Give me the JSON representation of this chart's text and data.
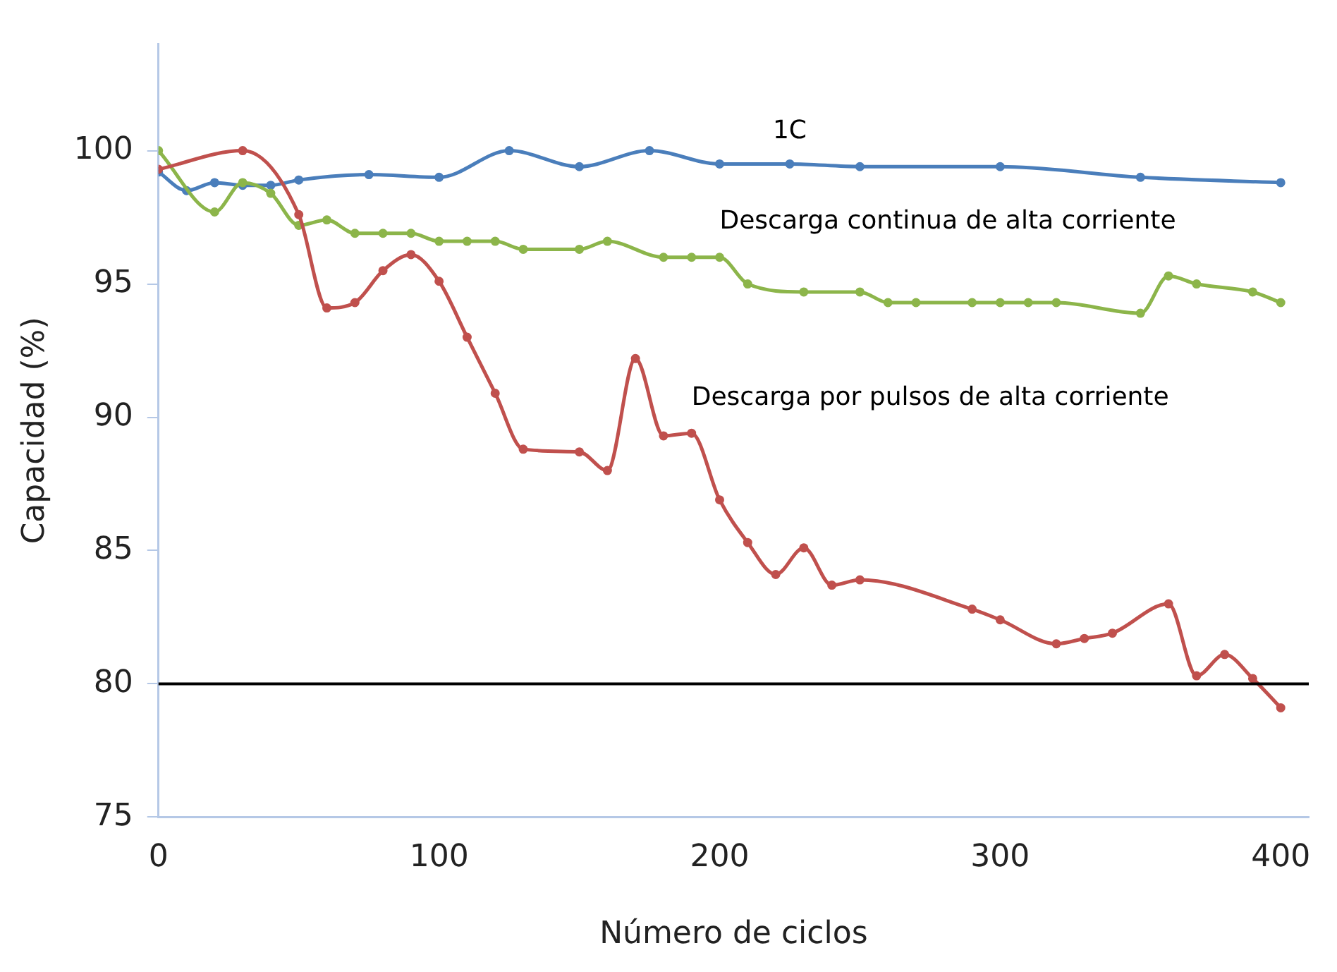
{
  "chart_data": {
    "type": "line",
    "xlabel": "Número de ciclos",
    "ylabel": "Capacidad (%)",
    "xlim": [
      0,
      410
    ],
    "xticks": [
      0,
      100,
      200,
      300,
      400
    ],
    "ylim": [
      75,
      104
    ],
    "yticks": [
      75,
      80,
      85,
      90,
      95,
      100
    ],
    "grid": false,
    "legend": false,
    "marker": "circle",
    "line_style": "solid",
    "ref_lines": [
      {
        "axis": "y",
        "value": 80,
        "color": "#000000"
      }
    ],
    "series": [
      {
        "name": "1C",
        "color": "#4a7ebb",
        "x": [
          0,
          10,
          20,
          30,
          40,
          50,
          75,
          100,
          125,
          150,
          175,
          200,
          225,
          250,
          300,
          350,
          400
        ],
        "values": [
          99.2,
          98.5,
          98.8,
          98.7,
          98.7,
          98.9,
          99.1,
          99,
          100,
          99.4,
          100,
          99.5,
          99.5,
          99.4,
          99.4,
          99,
          98.8
        ]
      },
      {
        "name": "Descarga continua de alta corriente",
        "color": "#8cb54a",
        "x": [
          0,
          20,
          30,
          40,
          50,
          60,
          70,
          80,
          90,
          100,
          110,
          120,
          130,
          150,
          160,
          180,
          190,
          200,
          210,
          230,
          250,
          260,
          270,
          290,
          300,
          310,
          320,
          350,
          360,
          370,
          390,
          400
        ],
        "values": [
          100,
          97.7,
          98.8,
          98.4,
          97.2,
          97.4,
          96.9,
          96.9,
          96.9,
          96.6,
          96.6,
          96.6,
          96.3,
          96.3,
          96.6,
          96,
          96,
          96,
          95,
          94.7,
          94.7,
          94.3,
          94.3,
          94.3,
          94.3,
          94.3,
          94.3,
          93.9,
          95.3,
          95,
          94.7,
          94.3
        ]
      },
      {
        "name": "Descarga por pulsos de alta corriente",
        "color": "#c0504d",
        "x": [
          0,
          30,
          50,
          60,
          70,
          80,
          90,
          100,
          110,
          120,
          130,
          150,
          160,
          170,
          180,
          190,
          200,
          210,
          220,
          230,
          240,
          250,
          290,
          300,
          320,
          330,
          340,
          360,
          370,
          380,
          390,
          400
        ],
        "values": [
          99.3,
          100,
          97.6,
          94.1,
          94.3,
          95.5,
          96.1,
          95.1,
          93,
          90.9,
          88.8,
          88.7,
          88,
          92.2,
          89.3,
          89.4,
          86.9,
          85.3,
          84.1,
          85.1,
          83.7,
          83.9,
          82.8,
          82.4,
          81.5,
          81.7,
          81.9,
          83,
          80.3,
          81.1,
          80.2,
          79.1
        ]
      }
    ]
  }
}
